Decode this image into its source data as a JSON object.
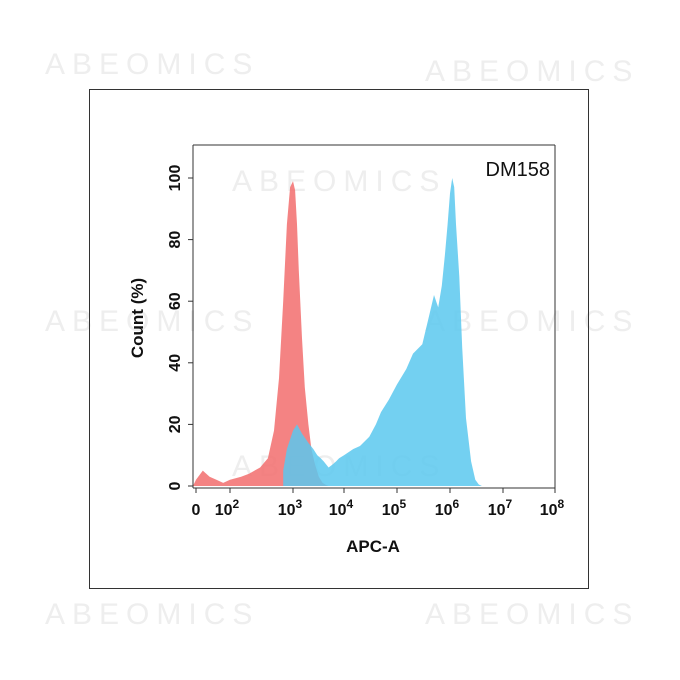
{
  "watermark": {
    "text": "ABEOMICS"
  },
  "chart_data": {
    "type": "area",
    "annotation": "DM158",
    "xlabel": "APC-A",
    "ylabel": "Count  (%)",
    "xscale": "biexponential",
    "xlim": [
      -20,
      100000000
    ],
    "ylim": [
      0,
      100
    ],
    "grid": false,
    "legend": "none",
    "xticks": [
      {
        "value": 0,
        "base": "0",
        "exp": ""
      },
      {
        "value": 100,
        "base": "10",
        "exp": "2"
      },
      {
        "value": 1000,
        "base": "10",
        "exp": "3"
      },
      {
        "value": 10000,
        "base": "10",
        "exp": "4"
      },
      {
        "value": 100000,
        "base": "10",
        "exp": "5"
      },
      {
        "value": 1000000,
        "base": "10",
        "exp": "6"
      },
      {
        "value": 10000000,
        "base": "10",
        "exp": "7"
      },
      {
        "value": 100000000,
        "base": "10",
        "exp": "8"
      }
    ],
    "yticks": [
      0,
      20,
      40,
      60,
      80,
      100
    ],
    "series": [
      {
        "color": "#f26d6d",
        "opacity": 0.85,
        "x": [
          -20,
          0,
          20,
          40,
          60,
          80,
          100,
          150,
          200,
          300,
          400,
          500,
          600,
          700,
          800,
          900,
          1000,
          1100,
          1200,
          1300,
          1500,
          1700,
          2000,
          2300,
          2700,
          3200,
          3800,
          4500,
          5000
        ],
        "y": [
          0,
          2,
          5,
          3,
          2,
          1,
          2,
          3,
          4,
          6,
          9,
          18,
          35,
          60,
          85,
          97,
          99,
          96,
          85,
          70,
          48,
          32,
          20,
          12,
          7,
          3,
          1,
          0.3,
          0
        ]
      },
      {
        "color": "#5bc8ef",
        "opacity": 0.85,
        "x": [
          700,
          800,
          1000,
          1200,
          1500,
          2000,
          2500,
          3000,
          3500,
          4000,
          5000,
          6000,
          7000,
          8000,
          10000,
          15000,
          20000,
          30000,
          40000,
          50000,
          70000,
          100000,
          150000,
          200000,
          300000,
          400000,
          500000,
          600000,
          700000,
          800000,
          900000,
          1000000,
          1100000,
          1200000,
          1300000,
          1500000,
          1700000,
          2000000,
          2500000,
          3000000,
          3500000,
          4000000
        ],
        "y": [
          5,
          12,
          18,
          20,
          17,
          14,
          12,
          10,
          9,
          8,
          6,
          7,
          8,
          9,
          10,
          12,
          13,
          16,
          20,
          24,
          28,
          33,
          38,
          43,
          46,
          55,
          62,
          58,
          65,
          75,
          85,
          95,
          100,
          97,
          85,
          68,
          45,
          22,
          8,
          2,
          0.5,
          0
        ]
      }
    ]
  }
}
